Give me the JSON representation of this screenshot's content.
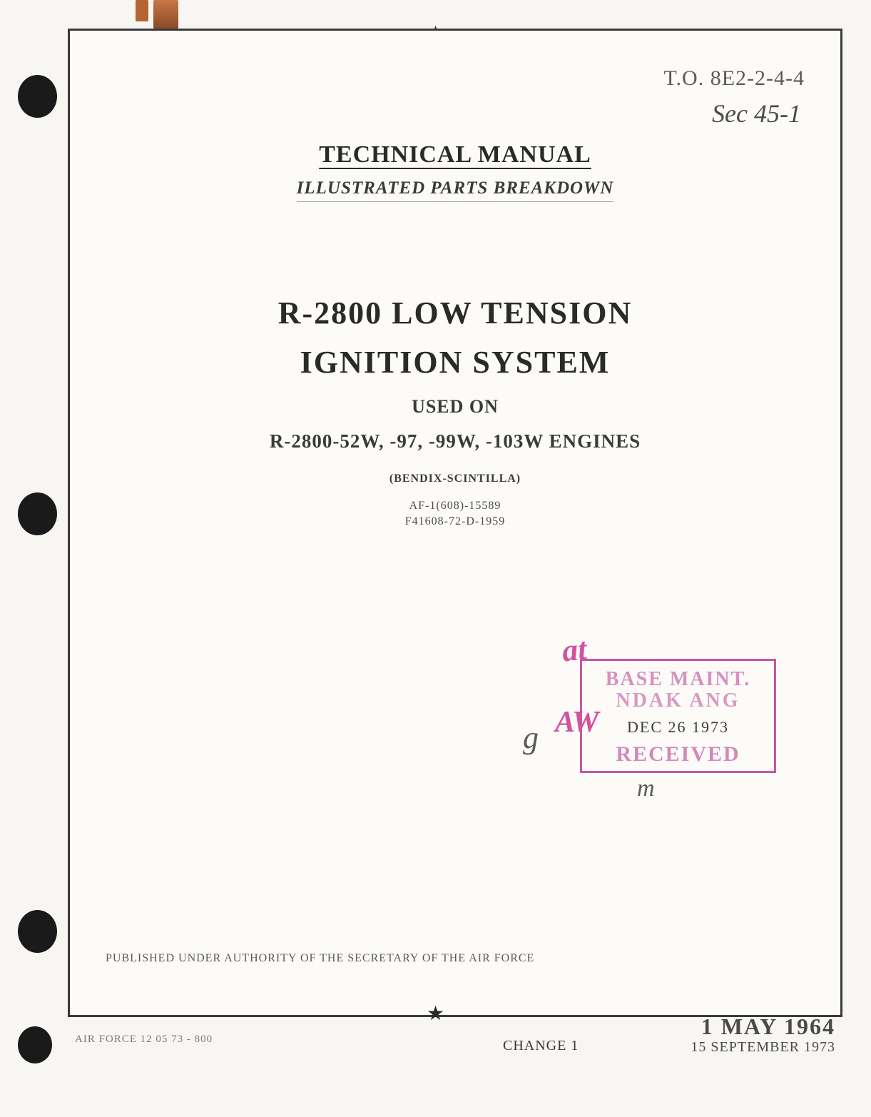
{
  "document": {
    "to_number": "T.O. 8E2-2-4-4",
    "handwritten_sec": "Sec 45-1",
    "header_title": "TECHNICAL MANUAL",
    "header_subtitle": "ILLUSTRATED PARTS BREAKDOWN",
    "main_title_line1": "R-2800 LOW TENSION",
    "main_title_line2": "IGNITION SYSTEM",
    "used_on": "USED ON",
    "engines": "R-2800-52W, -97, -99W, -103W ENGINES",
    "manufacturer": "(BENDIX-SCINTILLA)",
    "contract1": "AF-1(608)-15589",
    "contract2": "F41608-72-D-1959",
    "authority": "PUBLISHED UNDER AUTHORITY OF THE SECRETARY OF THE AIR FORCE"
  },
  "stamp": {
    "line1": "BASE MAINT.",
    "line2": "NDAK ANG",
    "date": "DEC  26  1973",
    "received": "RECEIVED",
    "handwritten_at": "at",
    "handwritten_aw": "AW",
    "handwritten_g": "g",
    "handwritten_m": "m"
  },
  "footer": {
    "left": "AIR FORCE 12 05 73 - 800",
    "change": "CHANGE 1",
    "date1": "1 MAY 1964",
    "date2": "15 SEPTEMBER 1973"
  },
  "styling": {
    "page_bg": "#fcfbf8",
    "body_bg": "#f8f6f2",
    "border_color": "#3a3a3a",
    "text_primary": "#2a2a2a",
    "text_secondary": "#4a4a4a",
    "text_faded": "#7a7a7a",
    "stamp_color": "#c458a0",
    "handwritten_pink": "#d4519e",
    "rust_color": "#c77843",
    "title_fontsize": 44,
    "header_fontsize": 34,
    "subtitle_fontsize": 25
  }
}
